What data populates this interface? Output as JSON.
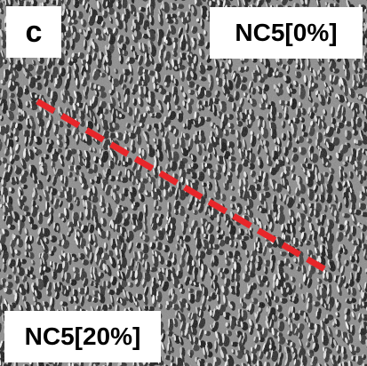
{
  "panel": {
    "letter": "c",
    "label_top_right": "NC5[0%]",
    "label_bottom_left": "NC5[20%]"
  },
  "colors": {
    "boundary_line": "#e8262a",
    "label_background": "#ffffff",
    "label_text": "#000000"
  },
  "image": {
    "subject": "grayscale SEM micrograph of a porous textured surface",
    "overlay": "red dashed diagonal boundary line"
  }
}
